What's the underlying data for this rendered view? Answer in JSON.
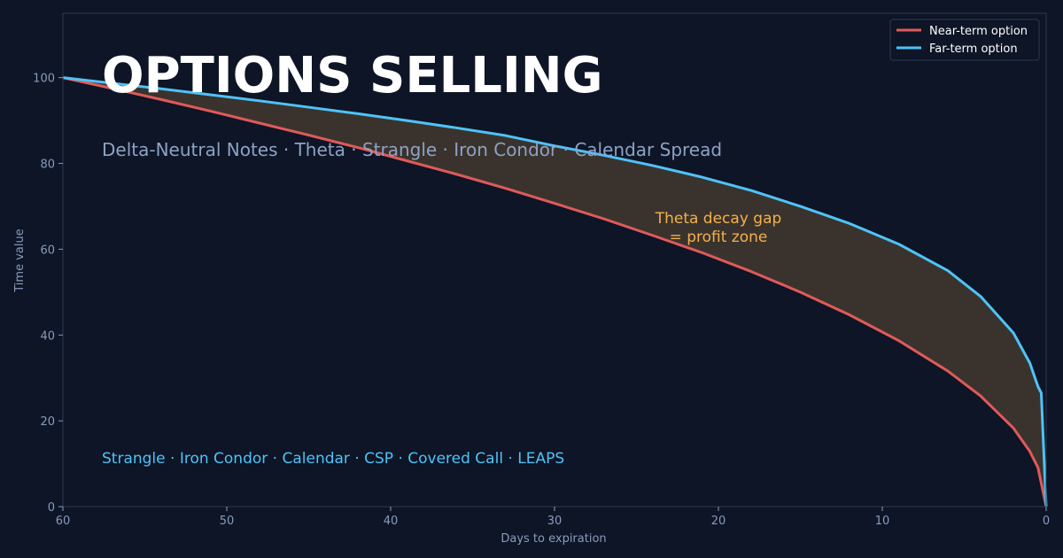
{
  "chart_data": {
    "type": "line",
    "title": "OPTIONS SELLING",
    "subtitle": "Delta-Neutral Notes  ·  Theta · Strangle · Iron Condor · Calendar Spread",
    "footer_note": "Strangle  ·  Iron Condor  ·  Calendar  ·  CSP  ·  Covered Call  ·  LEAPS",
    "annotation": {
      "lines": [
        "Theta decay gap",
        "= profit zone"
      ],
      "x": 20,
      "y": 65
    },
    "xlabel": "Days to expiration",
    "ylabel": "Time value",
    "xlim": [
      60,
      0
    ],
    "ylim": [
      0,
      115
    ],
    "xticks": [
      60,
      50,
      40,
      30,
      20,
      10,
      0
    ],
    "yticks": [
      0,
      20,
      40,
      60,
      80,
      100
    ],
    "grid": false,
    "legend_position": "top-right",
    "fill_between": {
      "color": "#3a332d"
    },
    "series": [
      {
        "name": "Near-term option",
        "color": "#e05a5a",
        "x": [
          60,
          57,
          54,
          51,
          48,
          45,
          42,
          39,
          36,
          33,
          30,
          27,
          24,
          21,
          18,
          15,
          12,
          9,
          6,
          4,
          2,
          1,
          0.5,
          0
        ],
        "y": [
          100,
          97.5,
          94.9,
          92.2,
          89.4,
          86.6,
          83.7,
          80.6,
          77.5,
          74.2,
          70.7,
          67.1,
          63.2,
          59.2,
          54.8,
          50.0,
          44.7,
          38.7,
          31.6,
          25.8,
          18.3,
          12.9,
          9.1,
          0
        ]
      },
      {
        "name": "Far-term option",
        "color": "#4fc3f7",
        "x": [
          60,
          57,
          54,
          51,
          48,
          45,
          42,
          39,
          36,
          33,
          30,
          27,
          24,
          21,
          18,
          15,
          12,
          9,
          6,
          4,
          2,
          1,
          0.5,
          0.3,
          0
        ],
        "y": [
          100,
          98.7,
          97.4,
          96.0,
          94.6,
          93.1,
          91.6,
          90.0,
          88.3,
          86.5,
          84.1,
          81.9,
          79.5,
          76.8,
          73.7,
          70.0,
          66.0,
          61.2,
          55.0,
          49.0,
          40.5,
          33.5,
          28.0,
          26.5,
          0
        ]
      }
    ]
  },
  "colors": {
    "background": "#0d1526",
    "plot_background": "#0d1526",
    "spine": "#2e3a52",
    "tick_text": "#8a9bbd"
  }
}
